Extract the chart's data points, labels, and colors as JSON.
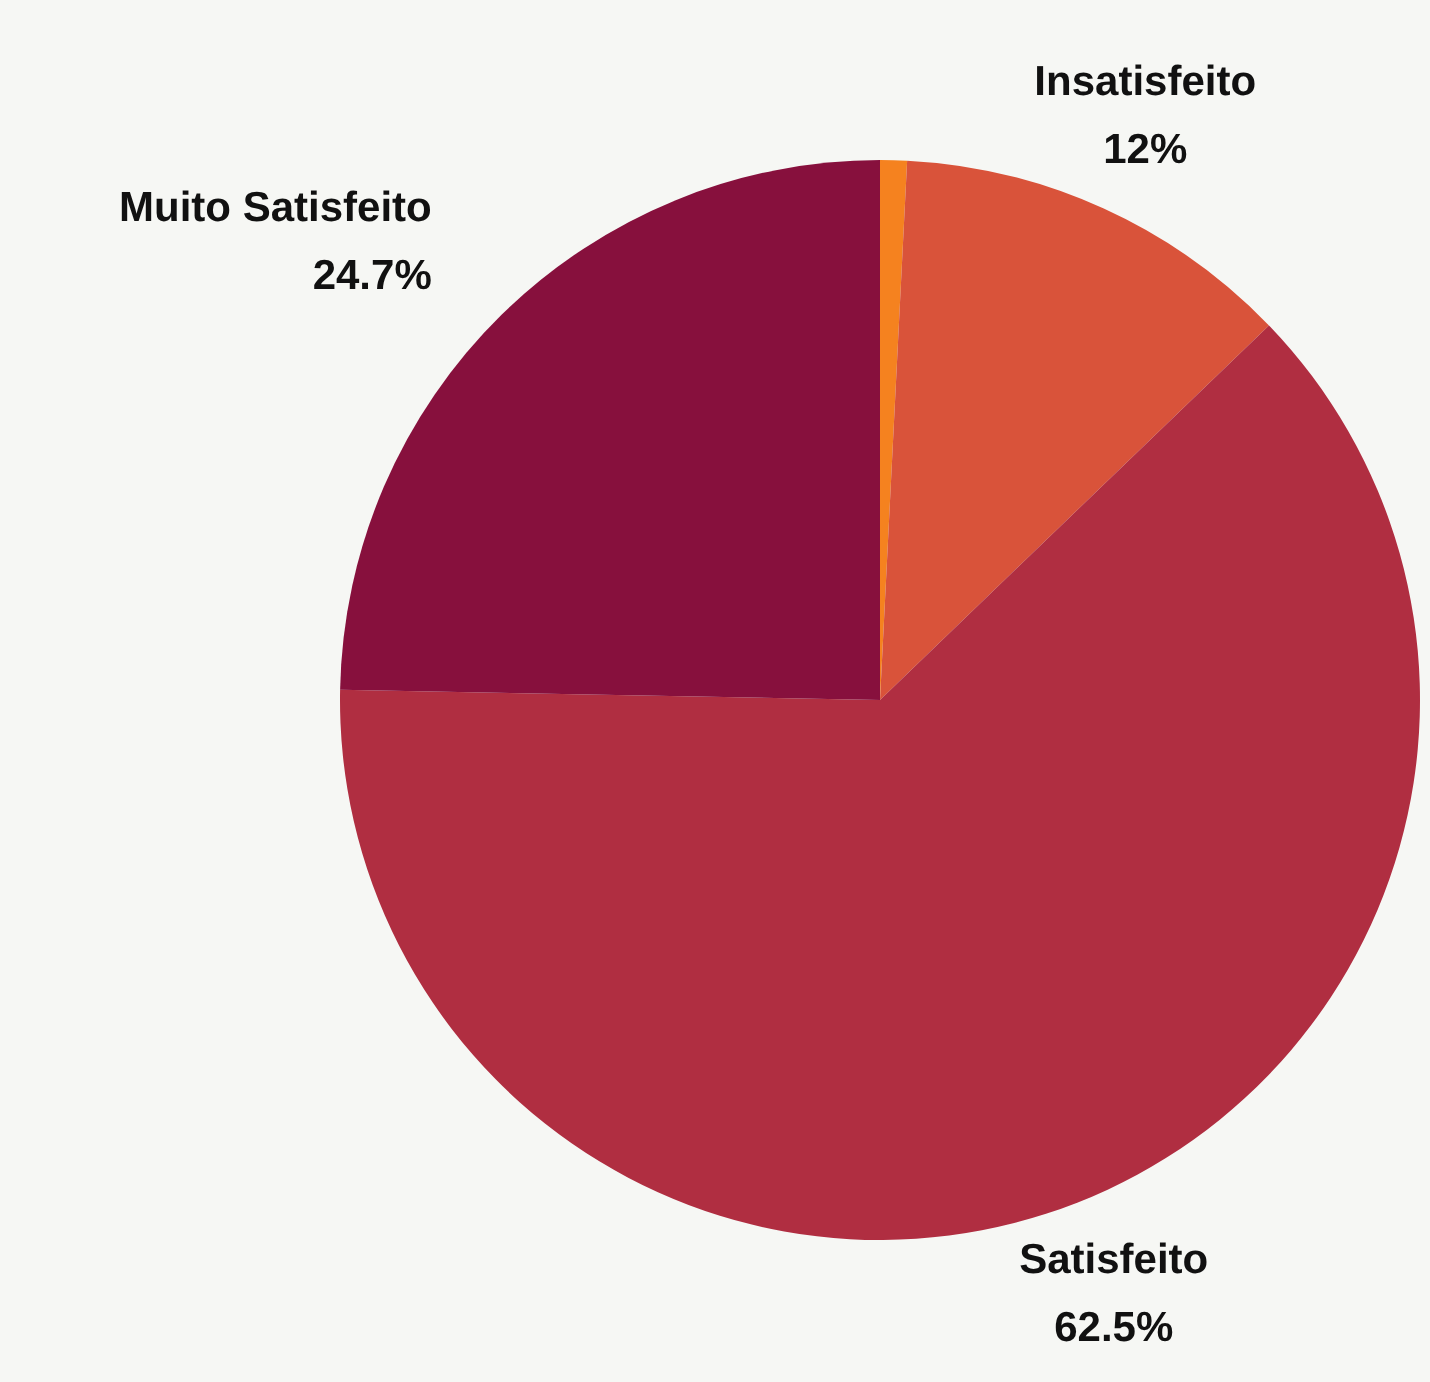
{
  "chart_data": {
    "type": "pie",
    "categories": [
      null,
      "Insatisfeito",
      "Satisfeito",
      "Muito Satisfeito"
    ],
    "values": [
      0.8,
      12,
      62.5,
      24.7
    ],
    "value_labels": [
      null,
      "12%",
      "62.5%",
      "24.7%"
    ],
    "colors": [
      "#f5821f",
      "#d9533a",
      "#b02e41",
      "#87103d"
    ],
    "legend": false
  }
}
